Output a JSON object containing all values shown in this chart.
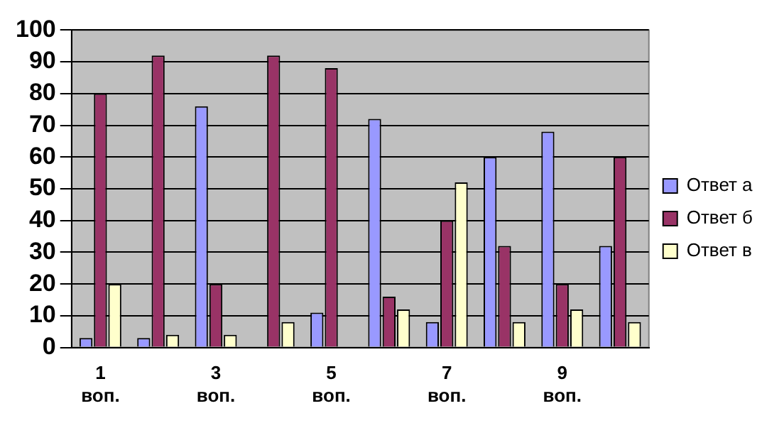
{
  "chart_data": {
    "type": "bar",
    "categories": [
      "1 воп.",
      null,
      "3 воп.",
      null,
      "5 воп.",
      null,
      "7 воп.",
      null,
      "9 воп.",
      null
    ],
    "series": [
      {
        "name": "Ответ а",
        "color": "#9999ff",
        "values": [
          3,
          3,
          76,
          0,
          11,
          72,
          8,
          60,
          68,
          32
        ]
      },
      {
        "name": "Ответ б",
        "color": "#993366",
        "values": [
          80,
          92,
          20,
          92,
          88,
          16,
          40,
          32,
          20,
          60
        ]
      },
      {
        "name": "Ответ в",
        "color": "#ffffcc",
        "values": [
          20,
          4,
          4,
          8,
          0,
          12,
          52,
          8,
          12,
          8
        ]
      }
    ],
    "ylim": [
      0,
      100
    ],
    "yticks": [
      0,
      10,
      20,
      30,
      40,
      50,
      60,
      70,
      80,
      90,
      100
    ],
    "grid": "y",
    "legend": "right"
  }
}
